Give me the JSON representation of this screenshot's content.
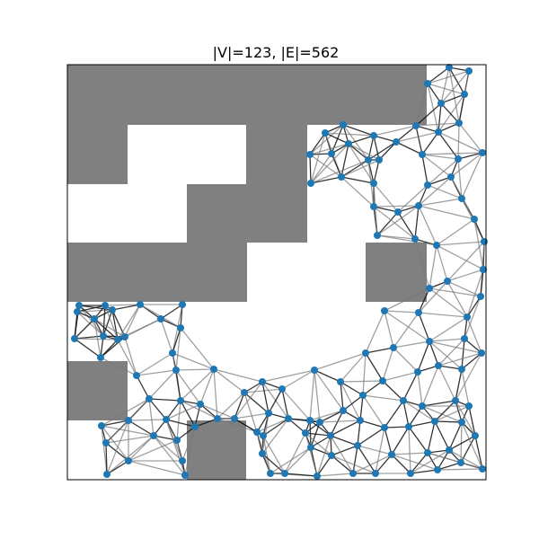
{
  "title": "|V|=123, |E|=562",
  "colors": {
    "obstacle": "#808080",
    "node": "#1f77b4",
    "edge_dark": "#111111",
    "edge_light": "#777777",
    "frame": "#000000"
  }
}
